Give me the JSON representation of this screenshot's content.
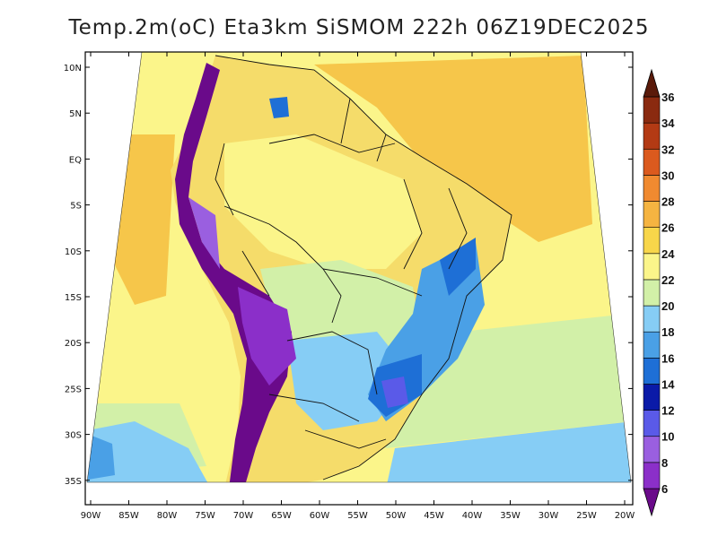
{
  "title": "Temp.2m(oC) Eta3km SiSMOM 222h 06Z19DEC2025",
  "lat_labels": [
    "10N",
    "5N",
    "EQ",
    "5S",
    "10S",
    "15S",
    "20S",
    "25S",
    "30S",
    "35S"
  ],
  "lon_labels": [
    "90W",
    "85W",
    "80W",
    "75W",
    "70W",
    "65W",
    "60W",
    "55W",
    "50W",
    "45W",
    "40W",
    "35W",
    "30W",
    "25W",
    "20W"
  ],
  "colorbar": {
    "levels": [
      "6",
      "8",
      "10",
      "12",
      "14",
      "16",
      "18",
      "20",
      "22",
      "24",
      "26",
      "28",
      "30",
      "32",
      "34",
      "36"
    ],
    "colors": [
      "#6a0a8a",
      "#8b2fc9",
      "#9a5fe0",
      "#5a5ae8",
      "#0a1aa8",
      "#1e6fd6",
      "#4aa0e6",
      "#86cdf5",
      "#d2f0a8",
      "#fbf58a",
      "#f8d64a",
      "#f5b441",
      "#f08a30",
      "#db5a1e",
      "#b33a14",
      "#8a2a10",
      "#5a1a0a"
    ]
  },
  "map": {
    "ocean_atlantic_color": "#f6c64a",
    "ocean_south_color": "#e7f6a4",
    "land_color": "#f5dc6a",
    "cold_colors": [
      "#86cdf5",
      "#4aa0e6",
      "#1e6fd6",
      "#0a1aa8",
      "#6a0a8a"
    ]
  }
}
